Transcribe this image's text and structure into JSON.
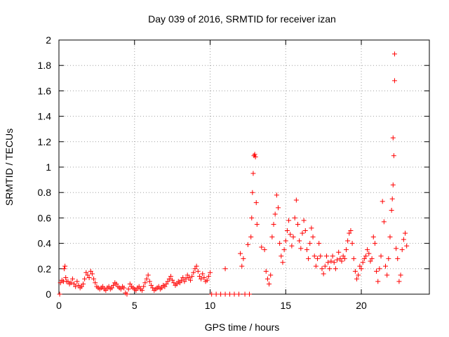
{
  "chart_data": {
    "type": "scatter",
    "title": "Day 039 of 2016, SRMTID for receiver izan",
    "xlabel": "GPS time / hours",
    "ylabel": "SRMTID / TECUs",
    "xlim": [
      0,
      24.5
    ],
    "ylim": [
      0,
      2
    ],
    "x_ticks": [
      0,
      5,
      10,
      15,
      20
    ],
    "y_ticks": [
      0,
      0.2,
      0.4,
      0.6,
      0.8,
      1,
      1.2,
      1.4,
      1.6,
      1.8,
      2
    ],
    "x_tick_labels": [
      "0",
      "5",
      "10",
      "15",
      "20"
    ],
    "y_tick_labels": [
      "0",
      "0.2",
      "0.4",
      "0.6",
      "0.8",
      "1",
      "1.2",
      "1.4",
      "1.6",
      "1.8",
      "2"
    ],
    "grid": true,
    "marker": "+",
    "series": [
      {
        "name": "SRMTID",
        "color": "#ff0000",
        "points": [
          [
            0.05,
            0.0
          ],
          [
            0.1,
            0.09
          ],
          [
            0.2,
            0.11
          ],
          [
            0.3,
            0.1
          ],
          [
            0.35,
            0.2
          ],
          [
            0.4,
            0.22
          ],
          [
            0.45,
            0.13
          ],
          [
            0.5,
            0.1
          ],
          [
            0.6,
            0.1
          ],
          [
            0.7,
            0.08
          ],
          [
            0.8,
            0.09
          ],
          [
            0.9,
            0.12
          ],
          [
            1.0,
            0.08
          ],
          [
            1.1,
            0.06
          ],
          [
            1.2,
            0.1
          ],
          [
            1.3,
            0.07
          ],
          [
            1.4,
            0.05
          ],
          [
            1.5,
            0.06
          ],
          [
            1.6,
            0.08
          ],
          [
            1.7,
            0.12
          ],
          [
            1.8,
            0.17
          ],
          [
            1.9,
            0.15
          ],
          [
            2.0,
            0.13
          ],
          [
            2.1,
            0.18
          ],
          [
            2.2,
            0.16
          ],
          [
            2.3,
            0.12
          ],
          [
            2.4,
            0.09
          ],
          [
            2.5,
            0.06
          ],
          [
            2.6,
            0.05
          ],
          [
            2.7,
            0.04
          ],
          [
            2.8,
            0.05
          ],
          [
            2.9,
            0.06
          ],
          [
            3.0,
            0.04
          ],
          [
            3.1,
            0.03
          ],
          [
            3.2,
            0.05
          ],
          [
            3.3,
            0.06
          ],
          [
            3.4,
            0.04
          ],
          [
            3.5,
            0.05
          ],
          [
            3.6,
            0.07
          ],
          [
            3.7,
            0.09
          ],
          [
            3.8,
            0.08
          ],
          [
            3.9,
            0.06
          ],
          [
            4.0,
            0.05
          ],
          [
            4.1,
            0.04
          ],
          [
            4.2,
            0.06
          ],
          [
            4.3,
            0.05
          ],
          [
            4.4,
            0.01
          ],
          [
            4.5,
            0.0
          ],
          [
            4.6,
            0.04
          ],
          [
            4.7,
            0.08
          ],
          [
            4.8,
            0.06
          ],
          [
            4.9,
            0.05
          ],
          [
            5.0,
            0.04
          ],
          [
            5.1,
            0.03
          ],
          [
            5.2,
            0.05
          ],
          [
            5.3,
            0.06
          ],
          [
            5.4,
            0.04
          ],
          [
            5.5,
            0.03
          ],
          [
            5.6,
            0.06
          ],
          [
            5.7,
            0.09
          ],
          [
            5.8,
            0.12
          ],
          [
            5.9,
            0.15
          ],
          [
            6.0,
            0.1
          ],
          [
            6.1,
            0.07
          ],
          [
            6.2,
            0.05
          ],
          [
            6.3,
            0.03
          ],
          [
            6.4,
            0.04
          ],
          [
            6.5,
            0.05
          ],
          [
            6.6,
            0.06
          ],
          [
            6.7,
            0.04
          ],
          [
            6.8,
            0.05
          ],
          [
            6.9,
            0.07
          ],
          [
            7.0,
            0.06
          ],
          [
            7.1,
            0.08
          ],
          [
            7.2,
            0.1
          ],
          [
            7.3,
            0.12
          ],
          [
            7.4,
            0.14
          ],
          [
            7.5,
            0.11
          ],
          [
            7.6,
            0.09
          ],
          [
            7.7,
            0.07
          ],
          [
            7.8,
            0.08
          ],
          [
            7.9,
            0.1
          ],
          [
            8.0,
            0.09
          ],
          [
            8.1,
            0.11
          ],
          [
            8.2,
            0.13
          ],
          [
            8.3,
            0.1
          ],
          [
            8.4,
            0.12
          ],
          [
            8.5,
            0.15
          ],
          [
            8.6,
            0.13
          ],
          [
            8.7,
            0.11
          ],
          [
            8.8,
            0.14
          ],
          [
            8.9,
            0.17
          ],
          [
            9.0,
            0.2
          ],
          [
            9.1,
            0.22
          ],
          [
            9.2,
            0.18
          ],
          [
            9.3,
            0.14
          ],
          [
            9.4,
            0.12
          ],
          [
            9.5,
            0.16
          ],
          [
            9.6,
            0.13
          ],
          [
            9.7,
            0.1
          ],
          [
            9.8,
            0.11
          ],
          [
            9.9,
            0.14
          ],
          [
            10.0,
            0.17
          ],
          [
            10.1,
            0.0
          ],
          [
            10.4,
            0.0
          ],
          [
            10.7,
            0.0
          ],
          [
            11.0,
            0.0
          ],
          [
            11.0,
            0.2
          ],
          [
            11.3,
            0.0
          ],
          [
            11.6,
            0.0
          ],
          [
            11.9,
            0.0
          ],
          [
            12.0,
            0.32
          ],
          [
            12.1,
            0.22
          ],
          [
            12.2,
            0.28
          ],
          [
            12.3,
            0.0
          ],
          [
            12.5,
            0.39
          ],
          [
            12.6,
            0.0
          ],
          [
            12.7,
            0.45
          ],
          [
            12.75,
            0.6
          ],
          [
            12.8,
            0.8
          ],
          [
            12.85,
            0.95
          ],
          [
            12.9,
            1.09
          ],
          [
            12.95,
            1.1
          ],
          [
            13.0,
            1.08
          ],
          [
            13.05,
            0.72
          ],
          [
            13.1,
            0.55
          ],
          [
            13.4,
            0.37
          ],
          [
            13.6,
            0.35
          ],
          [
            13.7,
            0.18
          ],
          [
            13.8,
            0.12
          ],
          [
            13.9,
            0.08
          ],
          [
            14.0,
            0.15
          ],
          [
            14.1,
            0.45
          ],
          [
            14.2,
            0.55
          ],
          [
            14.3,
            0.63
          ],
          [
            14.4,
            0.78
          ],
          [
            14.5,
            0.68
          ],
          [
            14.6,
            0.4
          ],
          [
            14.7,
            0.3
          ],
          [
            14.8,
            0.25
          ],
          [
            14.9,
            0.35
          ],
          [
            15.0,
            0.42
          ],
          [
            15.1,
            0.5
          ],
          [
            15.2,
            0.58
          ],
          [
            15.3,
            0.47
          ],
          [
            15.4,
            0.38
          ],
          [
            15.5,
            0.45
          ],
          [
            15.6,
            0.6
          ],
          [
            15.7,
            0.74
          ],
          [
            15.8,
            0.55
          ],
          [
            15.9,
            0.42
          ],
          [
            16.0,
            0.36
          ],
          [
            16.1,
            0.48
          ],
          [
            16.2,
            0.58
          ],
          [
            16.3,
            0.5
          ],
          [
            16.4,
            0.35
          ],
          [
            16.5,
            0.28
          ],
          [
            16.6,
            0.4
          ],
          [
            16.7,
            0.52
          ],
          [
            16.8,
            0.45
          ],
          [
            16.9,
            0.3
          ],
          [
            17.0,
            0.22
          ],
          [
            17.1,
            0.28
          ],
          [
            17.2,
            0.4
          ],
          [
            17.3,
            0.3
          ],
          [
            17.4,
            0.2
          ],
          [
            17.5,
            0.16
          ],
          [
            17.6,
            0.22
          ],
          [
            17.7,
            0.3
          ],
          [
            17.8,
            0.25
          ],
          [
            17.9,
            0.2
          ],
          [
            18.0,
            0.26
          ],
          [
            18.1,
            0.3
          ],
          [
            18.2,
            0.25
          ],
          [
            18.3,
            0.2
          ],
          [
            18.4,
            0.27
          ],
          [
            18.5,
            0.33
          ],
          [
            18.6,
            0.28
          ],
          [
            18.7,
            0.26
          ],
          [
            18.8,
            0.3
          ],
          [
            18.9,
            0.28
          ],
          [
            19.0,
            0.35
          ],
          [
            19.1,
            0.42
          ],
          [
            19.2,
            0.48
          ],
          [
            19.3,
            0.5
          ],
          [
            19.4,
            0.4
          ],
          [
            19.5,
            0.28
          ],
          [
            19.6,
            0.18
          ],
          [
            19.7,
            0.12
          ],
          [
            19.8,
            0.15
          ],
          [
            19.9,
            0.22
          ],
          [
            20.0,
            0.2
          ],
          [
            20.1,
            0.25
          ],
          [
            20.2,
            0.28
          ],
          [
            20.3,
            0.3
          ],
          [
            20.4,
            0.35
          ],
          [
            20.5,
            0.32
          ],
          [
            20.6,
            0.26
          ],
          [
            20.7,
            0.28
          ],
          [
            20.8,
            0.45
          ],
          [
            20.9,
            0.4
          ],
          [
            21.0,
            0.18
          ],
          [
            21.1,
            0.1
          ],
          [
            21.2,
            0.2
          ],
          [
            21.3,
            0.3
          ],
          [
            21.4,
            0.73
          ],
          [
            21.5,
            0.57
          ],
          [
            21.6,
            0.22
          ],
          [
            21.7,
            0.15
          ],
          [
            21.8,
            0.28
          ],
          [
            21.9,
            0.45
          ],
          [
            22.0,
            0.66
          ],
          [
            22.05,
            0.75
          ],
          [
            22.1,
            0.86
          ],
          [
            22.1,
            1.23
          ],
          [
            22.15,
            1.09
          ],
          [
            22.2,
            1.68
          ],
          [
            22.2,
            1.89
          ],
          [
            22.3,
            0.36
          ],
          [
            22.4,
            0.28
          ],
          [
            22.5,
            0.1
          ],
          [
            22.6,
            0.15
          ],
          [
            22.7,
            0.35
          ],
          [
            22.8,
            0.43
          ],
          [
            22.9,
            0.48
          ],
          [
            23.0,
            0.38
          ]
        ]
      }
    ]
  }
}
